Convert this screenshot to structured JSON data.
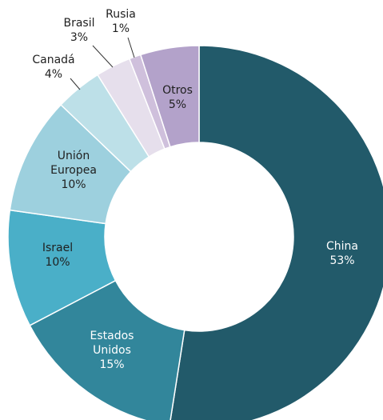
{
  "chart_data": {
    "type": "pie",
    "subtype": "donut",
    "title": "",
    "slices": [
      {
        "name": "China",
        "value": 53,
        "label": "53%",
        "color": "#225a6a"
      },
      {
        "name": "Estados Unidos",
        "value": 15,
        "label": "15%",
        "color": "#32869b"
      },
      {
        "name": "Israel",
        "value": 10,
        "label": "10%",
        "color": "#4aafc8"
      },
      {
        "name": "Unión Europea",
        "value": 10,
        "label": "10%",
        "color": "#9dd0de"
      },
      {
        "name": "Canadá",
        "value": 4,
        "label": "4%",
        "color": "#bde0e8"
      },
      {
        "name": "Brasil",
        "value": 3,
        "label": "3%",
        "color": "#e6dfec"
      },
      {
        "name": "Rusia",
        "value": 1,
        "label": "1%",
        "color": "#cfc0dc"
      },
      {
        "name": "Otros",
        "value": 5,
        "label": "5%",
        "color": "#b3a2ca"
      }
    ],
    "label_lines": {
      "China": [
        "China"
      ],
      "Estados Unidos": [
        "Estados",
        "Unidos"
      ],
      "Israel": [
        "Israel"
      ],
      "Unión Europea": [
        "Unión",
        "Europea"
      ],
      "Canadá": [
        "Canadá"
      ],
      "Brasil": [
        "Brasil"
      ],
      "Rusia": [
        "Rusia"
      ],
      "Otros": [
        "Otros"
      ]
    },
    "legend": "none"
  }
}
